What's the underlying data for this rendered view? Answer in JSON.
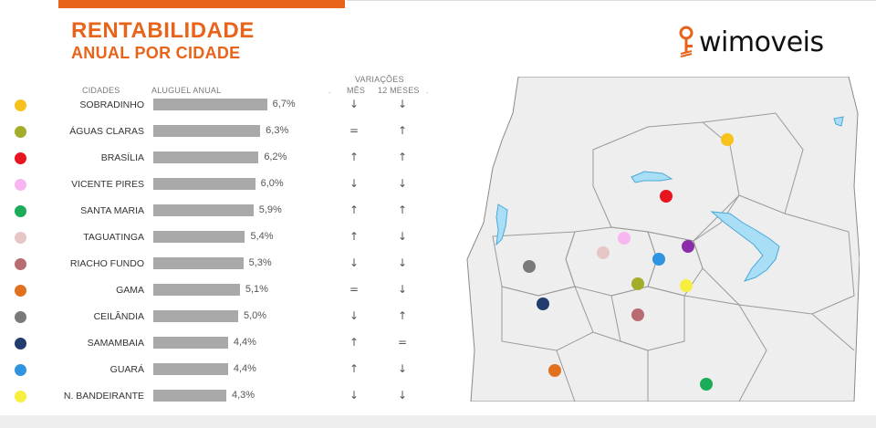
{
  "header": {
    "title_line1": "RENTABILIDADE",
    "title_line2": "ANUAL POR CIDADE"
  },
  "brand": {
    "name": "wimoveis",
    "icon": "key-icon",
    "accent": "#e8641a"
  },
  "columns": {
    "city": "CIDADES",
    "rent": "ALUGUEL ANUAL",
    "variations": "VARIAÇÕES",
    "month": "MÊS",
    "year": "12 MESES"
  },
  "chart_data": {
    "type": "bar",
    "orientation": "horizontal",
    "categories": [
      "SOBRADINHO",
      "ÁGUAS CLARAS",
      "BRASÍLIA",
      "VICENTE PIRES",
      "SANTA MARIA",
      "TAGUATINGA",
      "RIACHO FUNDO",
      "GAMA",
      "CEILÂNDIA",
      "SAMAMBAIA",
      "GUARÁ",
      "N. BANDEIRANTE"
    ],
    "values": [
      6.7,
      6.3,
      6.2,
      6.0,
      5.9,
      5.4,
      5.3,
      5.1,
      5.0,
      4.4,
      4.4,
      4.3
    ],
    "labels": [
      "6,7%",
      "6,3%",
      "6,2%",
      "6,0%",
      "5,9%",
      "5,4%",
      "5,3%",
      "5,1%",
      "5,0%",
      "4,4%",
      "4,4%",
      "4,3%"
    ],
    "colors": [
      "#f7c21b",
      "#a3ad2a",
      "#e8141e",
      "#f7b6f0",
      "#1aac58",
      "#e6c6c6",
      "#b96b72",
      "#e0711f",
      "#7a7a7a",
      "#233c6e",
      "#2f93e0",
      "#f7ef3d"
    ],
    "month_variation": [
      "down",
      "flat",
      "up",
      "down",
      "up",
      "up",
      "down",
      "flat",
      "down",
      "up",
      "up",
      "down"
    ],
    "year_variation": [
      "down",
      "up",
      "up",
      "down",
      "up",
      "down",
      "down",
      "down",
      "up",
      "flat",
      "down",
      "down"
    ],
    "grid": false
  }
}
